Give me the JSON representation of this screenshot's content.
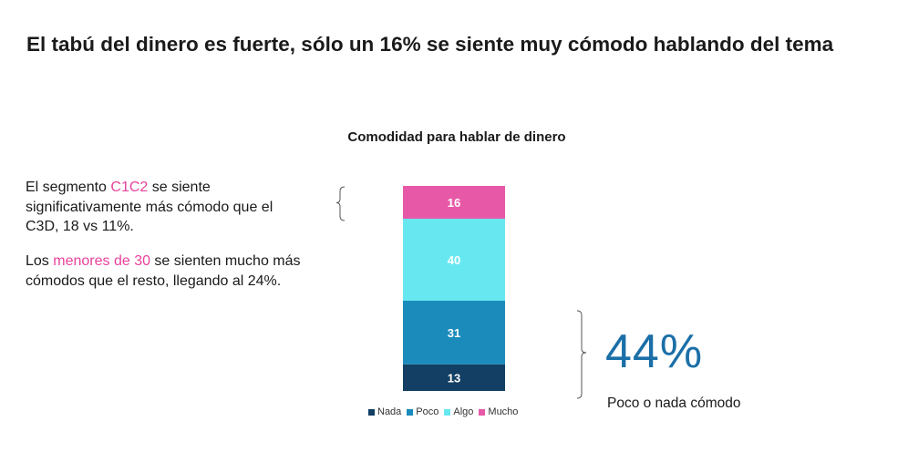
{
  "title": "El tabú del dinero es fuerte, sólo un 16% se siente muy cómodo hablando del tema",
  "notes": [
    {
      "before": "El segmento ",
      "highlight": "C1C2",
      "after": " se siente significativamente más cómodo que el C3D, 18 vs 11%."
    },
    {
      "before": "Los ",
      "highlight": "menores de 30",
      "after": " se sienten mucho más cómodos que el resto, llegando al 24%."
    }
  ],
  "callout": {
    "value": "44%",
    "label": "Poco o nada cómodo"
  },
  "chart_data": {
    "type": "bar",
    "stacked": true,
    "title": "Comodidad para hablar de dinero",
    "categories": [
      ""
    ],
    "series": [
      {
        "name": "Nada",
        "values": [
          13
        ],
        "color": "#123f63"
      },
      {
        "name": "Poco",
        "values": [
          31
        ],
        "color": "#1b8bbb"
      },
      {
        "name": "Algo",
        "values": [
          40
        ],
        "color": "#67e8f0"
      },
      {
        "name": "Mucho",
        "values": [
          16
        ],
        "color": "#e759a7"
      }
    ],
    "legend_position": "bottom",
    "grid": false
  }
}
